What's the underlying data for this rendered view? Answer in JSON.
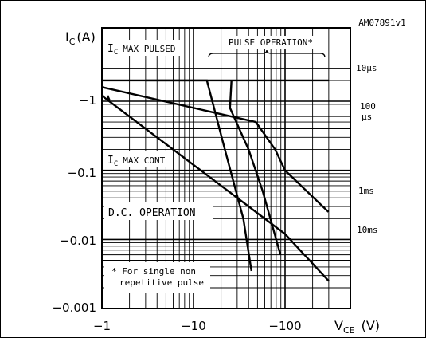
{
  "chart_data": {
    "type": "line",
    "figure_id": "AM07891v1",
    "ylabel_main": "I",
    "ylabel_sub": "C",
    "ylabel_unit": "(A)",
    "xlabel_main": "V",
    "xlabel_sub": "CE",
    "xlabel_unit": "(V)",
    "x_scale": "log",
    "y_scale": "log",
    "x_axis_direction": "negative, magnitude increasing to the right",
    "y_axis_direction": "negative, magnitude increasing upward",
    "xlim": [
      -1,
      -300
    ],
    "ylim": [
      -0.001,
      -3
    ],
    "xticks": [
      -1,
      -10,
      -100
    ],
    "xtick_labels": [
      "−1",
      "−10",
      "−100"
    ],
    "yticks": [
      -0.001,
      -0.01,
      -0.1,
      -1
    ],
    "ytick_labels": [
      "−0.001",
      "−0.01",
      "−0.1",
      "−1"
    ],
    "grid": true,
    "annotations": {
      "ic_max_pulsed": {
        "main": "I",
        "sub": "C",
        "rest": "MAX PULSED"
      },
      "ic_max_cont": {
        "main": "I",
        "sub": "C",
        "rest": "MAX CONT"
      },
      "pulse_operation": "PULSE OPERATION*",
      "dc_operation": "D.C. OPERATION",
      "footnote_line1": "* For single non",
      "footnote_line2": "repetitive pulse"
    },
    "series": [
      {
        "name": "10μs",
        "label_lines": [
          "10μs"
        ],
        "points": [
          [
            -1,
            -2
          ],
          [
            -300,
            -2
          ]
        ]
      },
      {
        "name": "100μs",
        "label_lines": [
          "100",
          "μs"
        ],
        "points": [
          [
            -3,
            -2
          ],
          [
            -3.5,
            -2
          ],
          [
            -14,
            -2
          ],
          [
            -22,
            -0.2
          ],
          [
            -35,
            -0.02
          ],
          [
            -43,
            -0.0035
          ]
        ]
      },
      {
        "name": "1ms",
        "label_lines": [
          "1ms"
        ],
        "points": [
          [
            -26,
            -2
          ],
          [
            -25.0,
            -0.8
          ],
          [
            -40.0,
            -0.2
          ],
          [
            -57.0,
            -0.05
          ],
          [
            -89,
            -0.006
          ]
        ]
      },
      {
        "name": "10ms",
        "label_lines": [
          "10ms"
        ],
        "points": [
          [
            -1,
            -1.6
          ],
          [
            -48,
            -0.5
          ],
          [
            -78,
            -0.2
          ],
          [
            -100,
            -0.1
          ],
          [
            -298,
            -0.025
          ]
        ]
      },
      {
        "name": "D.C.",
        "label_lines": [
          "D.C."
        ],
        "points": [
          [
            -1,
            -1.2
          ],
          [
            -100,
            -0.012
          ],
          [
            -300,
            -0.0025
          ]
        ]
      }
    ]
  }
}
